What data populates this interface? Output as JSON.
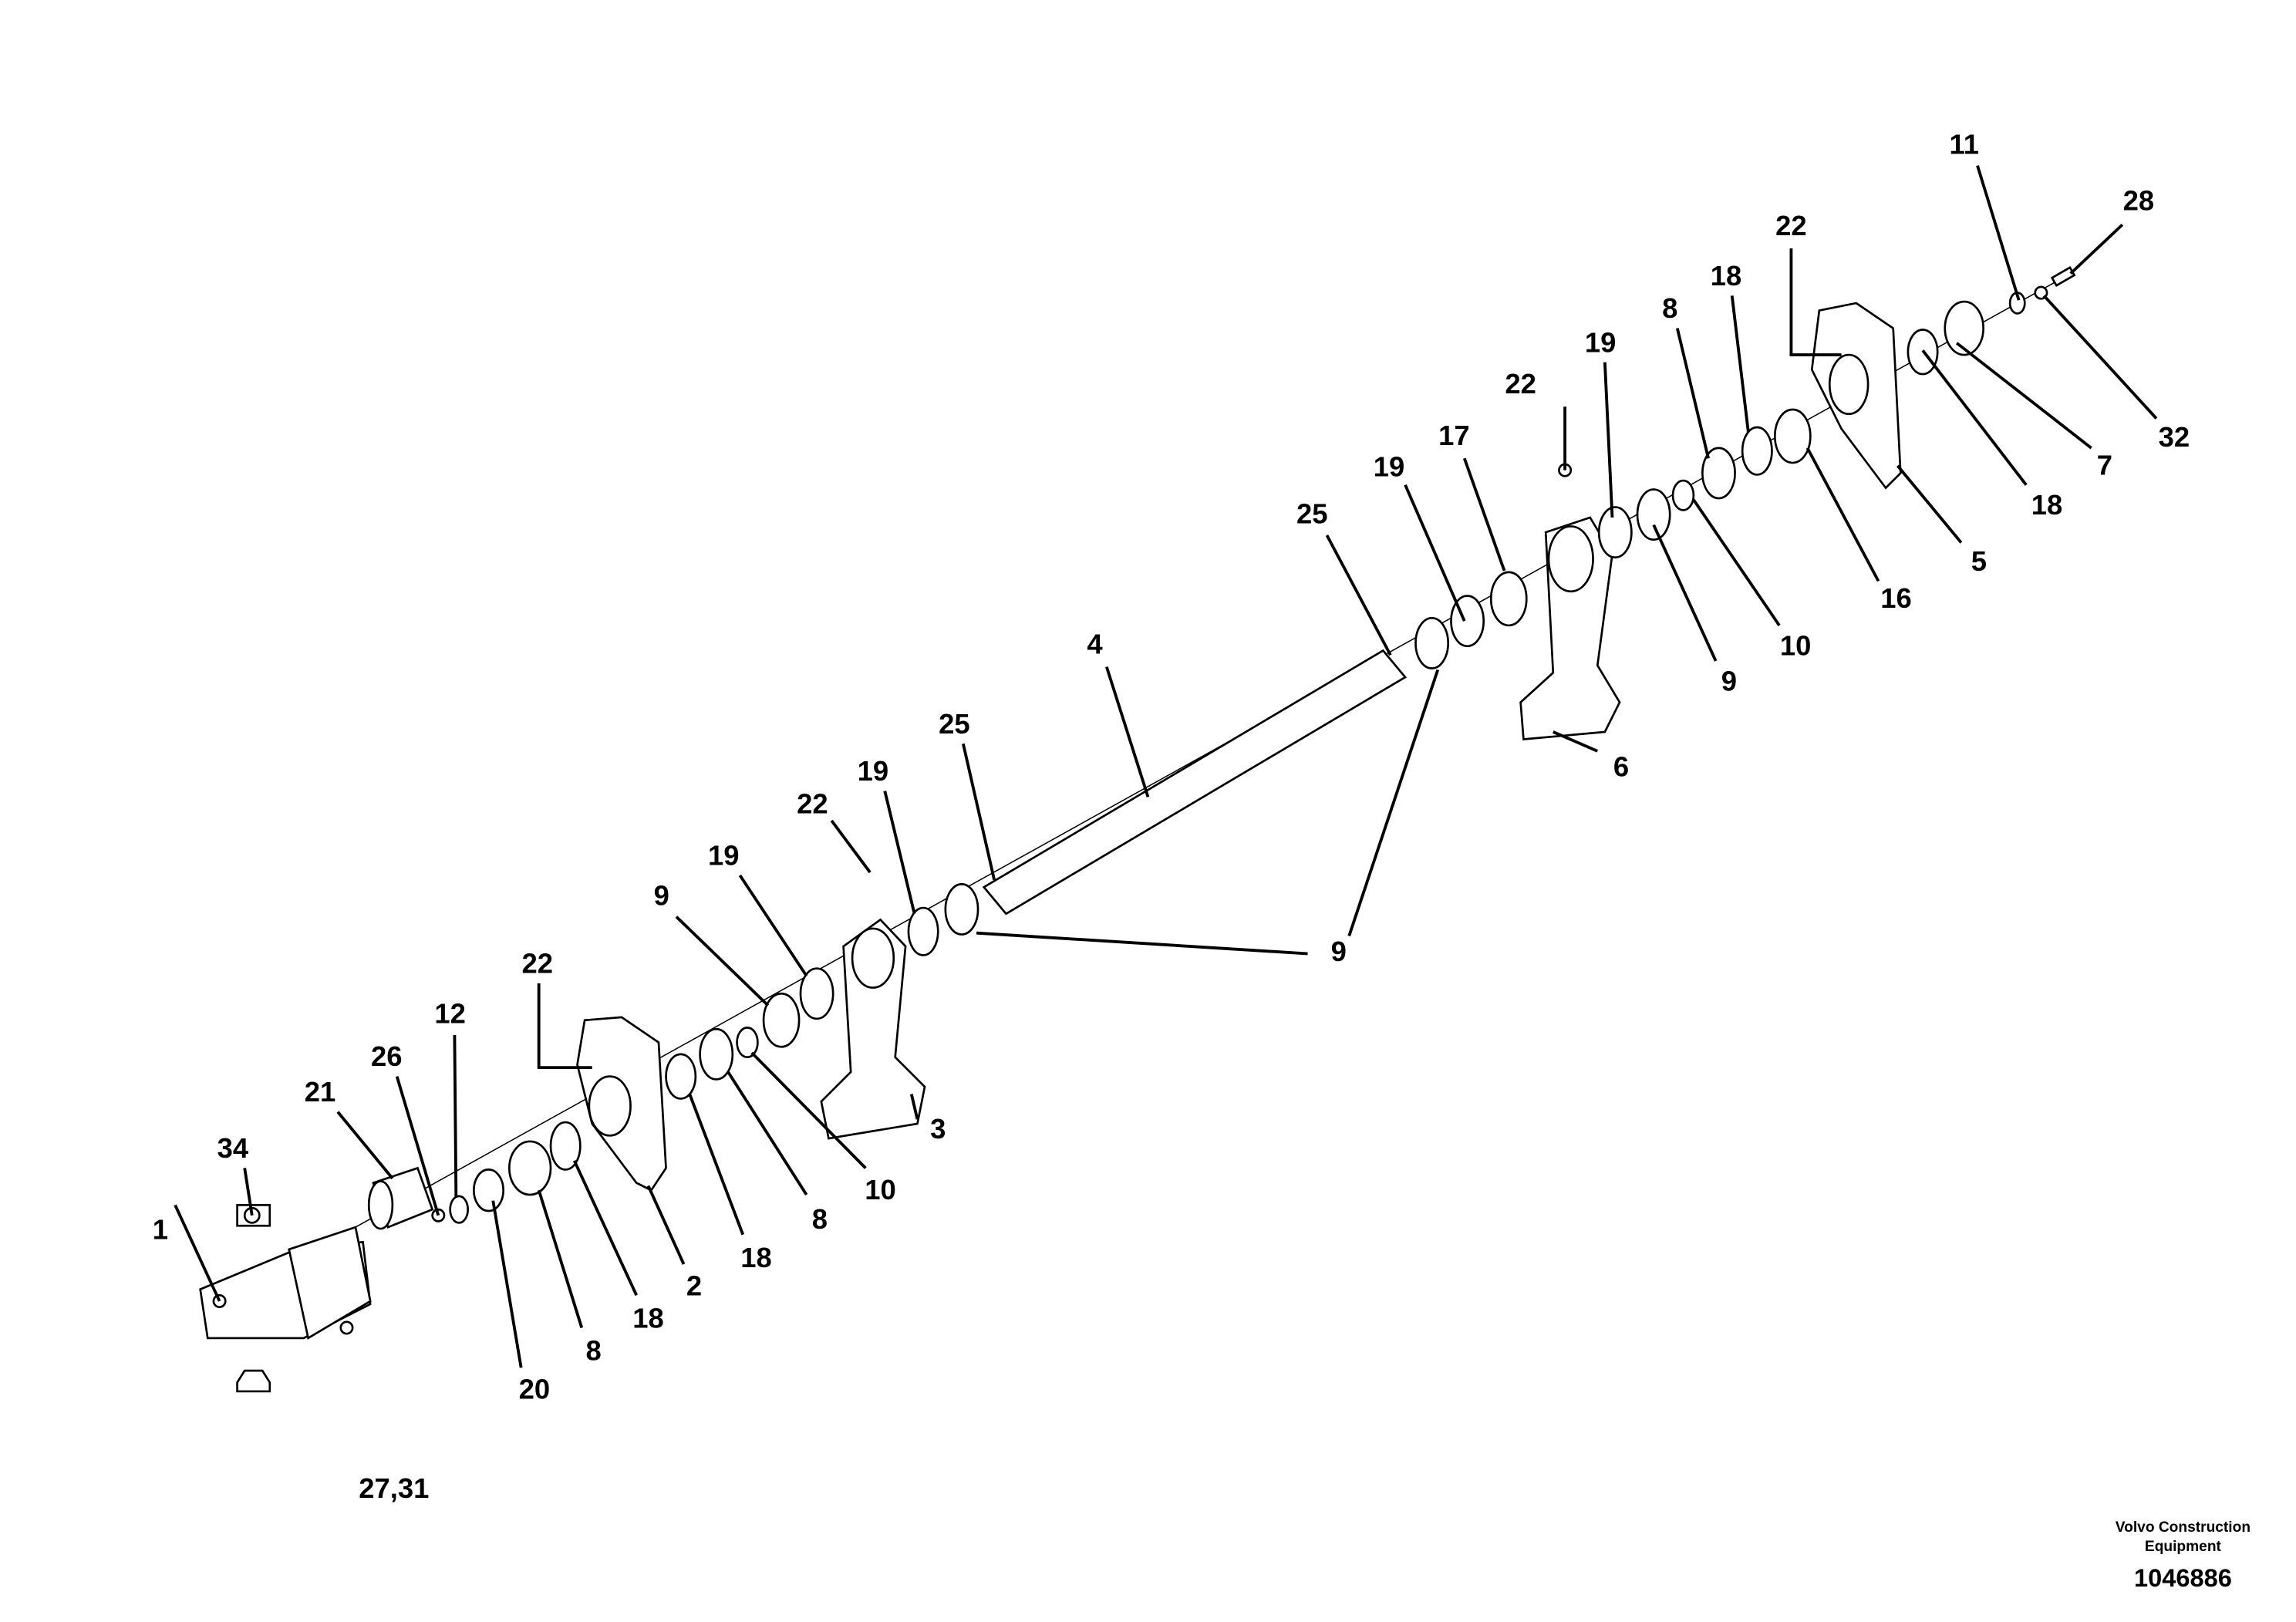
{
  "diagram": {
    "type": "exploded parts view",
    "callouts": [
      "1",
      "34",
      "21",
      "26",
      "12",
      "22",
      "20",
      "8",
      "18",
      "2",
      "18",
      "8",
      "10",
      "3",
      "9",
      "19",
      "22",
      "19",
      "25",
      "9",
      "4",
      "25",
      "19",
      "17",
      "22",
      "19",
      "8",
      "18",
      "22",
      "11",
      "28",
      "32",
      "7",
      "18",
      "5",
      "16",
      "10",
      "9",
      "6"
    ]
  },
  "footer": {
    "brand_line1": "Volvo Construction",
    "brand_line2": "Equipment",
    "document_number": "1046886"
  }
}
